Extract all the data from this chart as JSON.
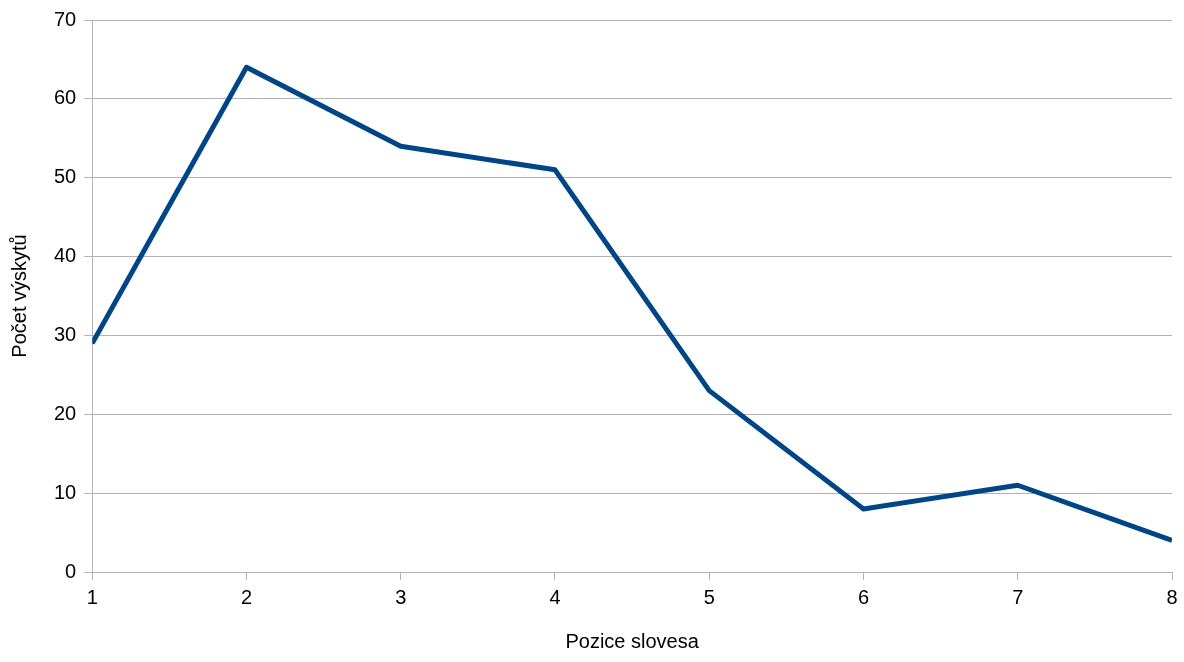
{
  "chart_data": {
    "type": "line",
    "xlabel": "Pozice slovesa",
    "ylabel": "Počet výskytů",
    "x": [
      1,
      2,
      3,
      4,
      5,
      6,
      7,
      8
    ],
    "series": [
      {
        "color": "#004586",
        "values": [
          29,
          64,
          54,
          51,
          23,
          8,
          11,
          4
        ]
      }
    ],
    "xlim": [
      1,
      8
    ],
    "xticks": [
      1,
      2,
      3,
      4,
      5,
      6,
      7,
      8
    ],
    "ylim": [
      0,
      70
    ],
    "yticks": [
      0,
      10,
      20,
      30,
      40,
      50,
      60,
      70
    ],
    "grid": "y",
    "legend": false
  }
}
